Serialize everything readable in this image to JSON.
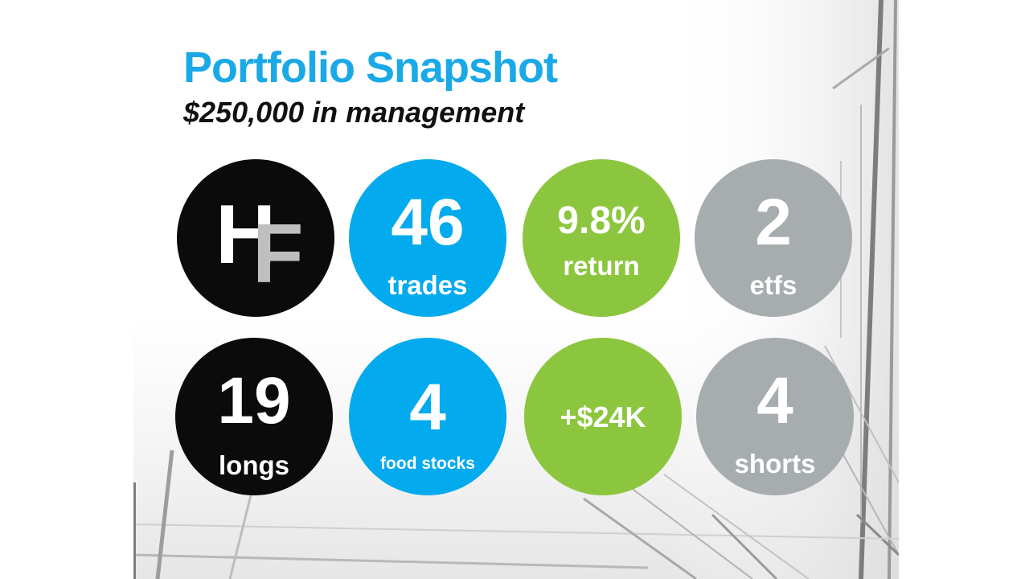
{
  "slide": {
    "title": "Portfolio Snapshot",
    "subtitle": "$250,000 in management"
  },
  "logo": {
    "letter_h": "H",
    "letter_f": "F"
  },
  "stats": {
    "trades": {
      "value": "46",
      "label": "trades"
    },
    "return": {
      "value": "9.8%",
      "label": "return"
    },
    "etfs": {
      "value": "2",
      "label": "etfs"
    },
    "longs": {
      "value": "19",
      "label": "longs"
    },
    "food": {
      "value": "4",
      "label": "food stocks"
    },
    "gain": {
      "value": "+$24K"
    },
    "shorts": {
      "value": "4",
      "label": "shorts"
    }
  },
  "colors": {
    "title": "#1aa9e6",
    "black": "#0b0b0b",
    "blue": "#04aaee",
    "green": "#8cc63f",
    "gray": "#a7adaf"
  }
}
